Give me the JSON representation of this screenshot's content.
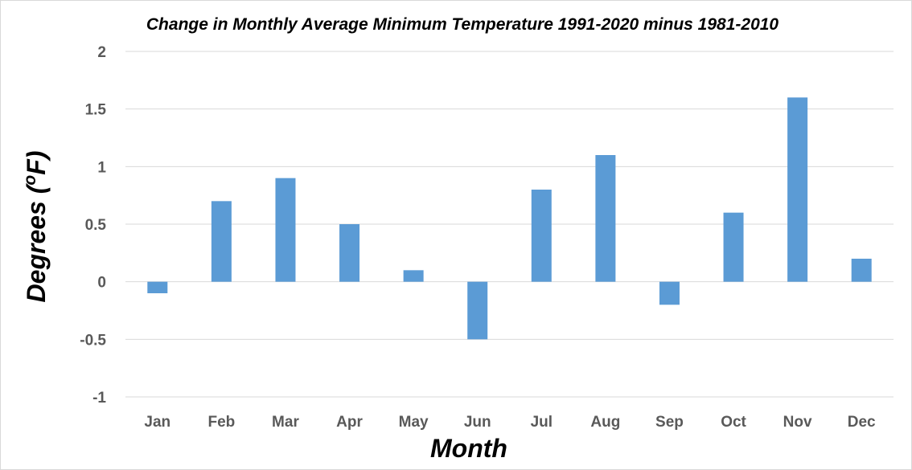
{
  "chart_data": {
    "type": "bar",
    "title": "Change in Monthly Average Minimum Temperature 1991-2020 minus 1981-2010",
    "xlabel": "Month",
    "ylabel_prefix": "Degrees (",
    "ylabel_unit_sup": "o",
    "ylabel_suffix": "F)",
    "categories": [
      "Jan",
      "Feb",
      "Mar",
      "Apr",
      "May",
      "Jun",
      "Jul",
      "Aug",
      "Sep",
      "Oct",
      "Nov",
      "Dec"
    ],
    "values": [
      -0.1,
      0.7,
      0.9,
      0.5,
      0.1,
      -0.5,
      0.8,
      1.1,
      -0.2,
      0.6,
      1.6,
      0.2
    ],
    "ylim": [
      -1,
      2
    ],
    "yticks": [
      -1,
      -0.5,
      0,
      0.5,
      1,
      1.5,
      2
    ],
    "ytick_labels": [
      "-1",
      "-0.5",
      "0",
      "0.5",
      "1",
      "1.5",
      "2"
    ],
    "grid": true,
    "legend": "none",
    "bar_color": "#5b9bd5"
  }
}
